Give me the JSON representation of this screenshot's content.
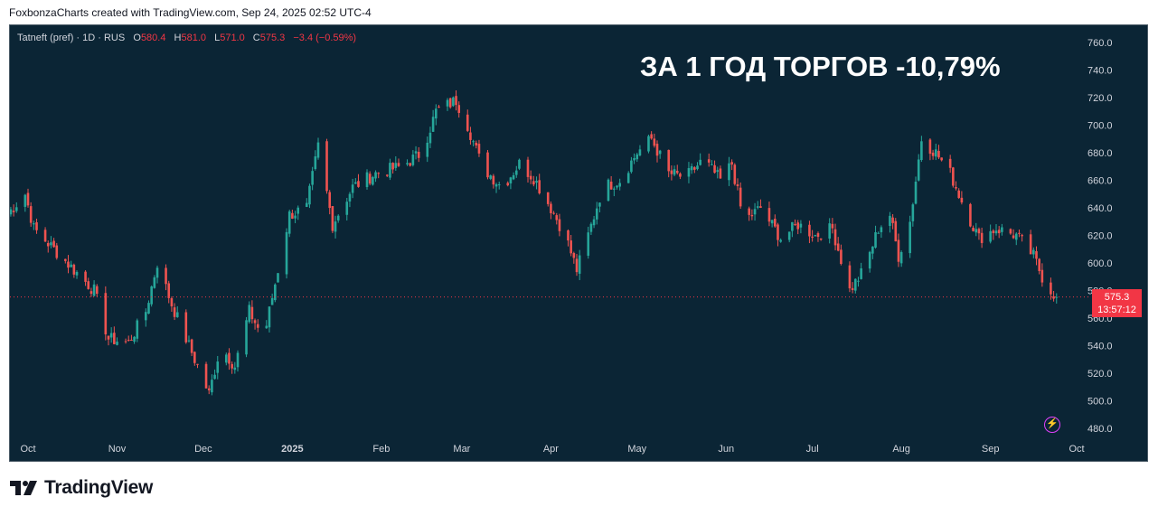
{
  "header": {
    "caption": "FoxbonzaCharts created with TradingView.com, Sep 24, 2025 02:52 UTC-4"
  },
  "legend": {
    "symbol": "Tatneft (pref) · 1D · RUS",
    "o_label": "O",
    "o": "580.4",
    "h_label": "H",
    "h": "581.0",
    "l_label": "L",
    "l": "571.0",
    "c_label": "C",
    "c": "575.3",
    "change": "−3.4 (−0.59%)"
  },
  "overlay_text": "ЗА 1 ГОД ТОРГОВ -10,79%",
  "price_tag": {
    "price": "575.3",
    "countdown": "13:57:12"
  },
  "footer": {
    "brand": "TradingView"
  },
  "colors": {
    "up": "#26a69a",
    "down": "#ef5350",
    "background": "#0b2535",
    "price_tag": "#f23645",
    "alert_icon": "#e040fb"
  },
  "icons": {
    "alert": "lightning-icon",
    "logo": "tradingview-logo-icon"
  },
  "chart_data": {
    "type": "candlestick",
    "title": "",
    "y_axis": {
      "side": "right",
      "ticks": [
        760.0,
        740.0,
        720.0,
        700.0,
        680.0,
        660.0,
        640.0,
        620.0,
        600.0,
        580.0,
        560.0,
        540.0,
        520.0,
        500.0,
        480.0
      ],
      "range": [
        470,
        770
      ]
    },
    "x_axis": {
      "ticks": [
        {
          "label": "Oct",
          "date": "2024-10-01",
          "bold": false
        },
        {
          "label": "Nov",
          "date": "2024-11-01",
          "bold": false
        },
        {
          "label": "Dec",
          "date": "2024-12-01",
          "bold": false
        },
        {
          "label": "2025",
          "date": "2025-01-01",
          "bold": true
        },
        {
          "label": "Feb",
          "date": "2025-02-01",
          "bold": false
        },
        {
          "label": "Mar",
          "date": "2025-03-01",
          "bold": false
        },
        {
          "label": "Apr",
          "date": "2025-04-01",
          "bold": false
        },
        {
          "label": "May",
          "date": "2025-05-01",
          "bold": false
        },
        {
          "label": "Jun",
          "date": "2025-06-01",
          "bold": false
        },
        {
          "label": "Jul",
          "date": "2025-07-01",
          "bold": false
        },
        {
          "label": "Aug",
          "date": "2025-08-01",
          "bold": false
        },
        {
          "label": "Sep",
          "date": "2025-09-01",
          "bold": false
        },
        {
          "label": "Oct",
          "date": "2025-10-01",
          "bold": false
        }
      ]
    },
    "last_price": 575.3,
    "close_path": [
      {
        "date": "2024-09-24",
        "close": 636
      },
      {
        "date": "2024-09-30",
        "close": 650
      },
      {
        "date": "2024-10-03",
        "close": 625
      },
      {
        "date": "2024-10-10",
        "close": 610
      },
      {
        "date": "2024-10-17",
        "close": 595
      },
      {
        "date": "2024-10-24",
        "close": 580
      },
      {
        "date": "2024-10-29",
        "close": 545
      },
      {
        "date": "2024-11-05",
        "close": 542
      },
      {
        "date": "2024-11-11",
        "close": 565
      },
      {
        "date": "2024-11-15",
        "close": 600
      },
      {
        "date": "2024-11-20",
        "close": 570
      },
      {
        "date": "2024-11-26",
        "close": 540
      },
      {
        "date": "2024-12-03",
        "close": 505
      },
      {
        "date": "2024-12-07",
        "close": 540
      },
      {
        "date": "2024-12-12",
        "close": 525
      },
      {
        "date": "2024-12-17",
        "close": 565
      },
      {
        "date": "2024-12-22",
        "close": 545
      },
      {
        "date": "2024-12-27",
        "close": 595
      },
      {
        "date": "2024-12-31",
        "close": 635
      },
      {
        "date": "2025-01-06",
        "close": 640
      },
      {
        "date": "2025-01-10",
        "close": 685
      },
      {
        "date": "2025-01-15",
        "close": 628
      },
      {
        "date": "2025-01-22",
        "close": 655
      },
      {
        "date": "2025-01-30",
        "close": 665
      },
      {
        "date": "2025-02-08",
        "close": 670
      },
      {
        "date": "2025-02-15",
        "close": 680
      },
      {
        "date": "2025-02-20",
        "close": 710
      },
      {
        "date": "2025-02-27",
        "close": 718
      },
      {
        "date": "2025-03-03",
        "close": 700
      },
      {
        "date": "2025-03-08",
        "close": 670
      },
      {
        "date": "2025-03-15",
        "close": 655
      },
      {
        "date": "2025-03-21",
        "close": 672
      },
      {
        "date": "2025-03-26",
        "close": 662
      },
      {
        "date": "2025-04-01",
        "close": 640
      },
      {
        "date": "2025-04-06",
        "close": 620
      },
      {
        "date": "2025-04-10",
        "close": 595
      },
      {
        "date": "2025-04-14",
        "close": 620
      },
      {
        "date": "2025-04-19",
        "close": 655
      },
      {
        "date": "2025-04-25",
        "close": 660
      },
      {
        "date": "2025-05-01",
        "close": 680
      },
      {
        "date": "2025-05-06",
        "close": 690
      },
      {
        "date": "2025-05-12",
        "close": 665
      },
      {
        "date": "2025-05-18",
        "close": 662
      },
      {
        "date": "2025-05-24",
        "close": 675
      },
      {
        "date": "2025-05-30",
        "close": 660
      },
      {
        "date": "2025-06-03",
        "close": 672
      },
      {
        "date": "2025-06-07",
        "close": 630
      },
      {
        "date": "2025-06-13",
        "close": 640
      },
      {
        "date": "2025-06-20",
        "close": 618
      },
      {
        "date": "2025-06-26",
        "close": 628
      },
      {
        "date": "2025-07-02",
        "close": 620
      },
      {
        "date": "2025-07-08",
        "close": 625
      },
      {
        "date": "2025-07-14",
        "close": 580
      },
      {
        "date": "2025-07-19",
        "close": 595
      },
      {
        "date": "2025-07-24",
        "close": 625
      },
      {
        "date": "2025-07-28",
        "close": 635
      },
      {
        "date": "2025-07-31",
        "close": 605
      },
      {
        "date": "2025-08-04",
        "close": 630
      },
      {
        "date": "2025-08-08",
        "close": 690
      },
      {
        "date": "2025-08-13",
        "close": 680
      },
      {
        "date": "2025-08-18",
        "close": 665
      },
      {
        "date": "2025-08-23",
        "close": 640
      },
      {
        "date": "2025-08-28",
        "close": 618
      },
      {
        "date": "2025-09-03",
        "close": 625
      },
      {
        "date": "2025-09-10",
        "close": 620
      },
      {
        "date": "2025-09-16",
        "close": 605
      },
      {
        "date": "2025-09-20",
        "close": 585
      },
      {
        "date": "2025-09-24",
        "close": 575.3
      }
    ]
  }
}
